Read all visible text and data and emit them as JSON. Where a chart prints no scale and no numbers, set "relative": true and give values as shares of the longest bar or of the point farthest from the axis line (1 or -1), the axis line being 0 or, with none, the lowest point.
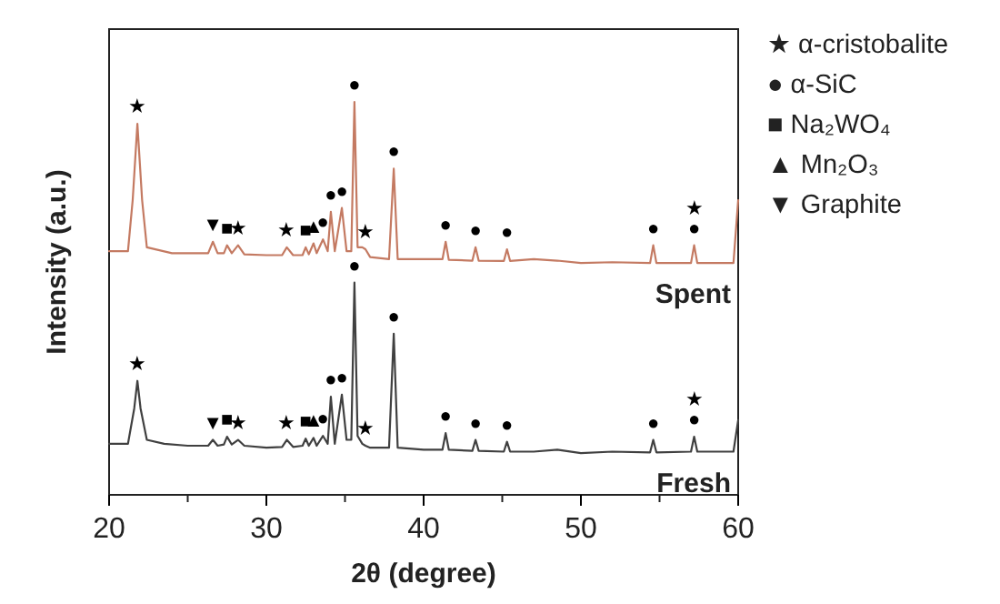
{
  "chart_data": {
    "type": "line",
    "relative": true,
    "xlabel": "2θ (degree)",
    "ylabel": "Intensity (a.u.)",
    "xlim": [
      20,
      60
    ],
    "xticks": [
      20,
      30,
      40,
      50,
      60
    ],
    "tick_labels": "x",
    "series": [
      {
        "name": "Spent",
        "color": "#c47a62",
        "x": [
          20,
          21.2,
          21.5,
          21.8,
          22.1,
          22.4,
          24,
          26.3,
          26.6,
          26.9,
          27.3,
          27.5,
          27.8,
          28.2,
          28.6,
          30,
          31.0,
          31.3,
          31.7,
          32.3,
          32.5,
          32.7,
          33.0,
          33.2,
          33.6,
          33.9,
          34.1,
          34.35,
          34.8,
          35.1,
          35.4,
          35.6,
          35.8,
          36.1,
          36.3,
          36.6,
          37.8,
          38.1,
          38.35,
          40,
          41.2,
          41.4,
          41.6,
          43.1,
          43.3,
          43.5,
          45.1,
          45.3,
          45.5,
          47,
          48.5,
          50,
          52,
          54.4,
          54.6,
          54.8,
          57.0,
          57.2,
          57.4,
          59.7,
          60
        ],
        "values": [
          0.62,
          0.62,
          0.75,
          0.944,
          0.75,
          0.63,
          0.615,
          0.615,
          0.644,
          0.615,
          0.615,
          0.635,
          0.615,
          0.635,
          0.612,
          0.61,
          0.61,
          0.63,
          0.61,
          0.61,
          0.63,
          0.612,
          0.64,
          0.615,
          0.65,
          0.62,
          0.72,
          0.62,
          0.73,
          0.62,
          0.62,
          1.0,
          0.63,
          0.63,
          0.625,
          0.605,
          0.6,
          0.83,
          0.6,
          0.6,
          0.6,
          0.644,
          0.598,
          0.596,
          0.63,
          0.596,
          0.595,
          0.625,
          0.595,
          0.6,
          0.596,
          0.59,
          0.592,
          0.59,
          0.635,
          0.59,
          0.59,
          0.635,
          0.59,
          0.59,
          0.75
        ]
      },
      {
        "name": "Fresh",
        "color": "#404040",
        "x": [
          20,
          21.2,
          21.6,
          21.8,
          22.0,
          22.4,
          23.5,
          25,
          26.3,
          26.6,
          26.9,
          27.3,
          27.5,
          27.8,
          28.2,
          28.6,
          30,
          31.0,
          31.3,
          31.7,
          32.3,
          32.5,
          32.7,
          33.0,
          33.2,
          33.6,
          33.9,
          34.1,
          34.35,
          34.8,
          35.1,
          35.4,
          35.6,
          35.8,
          36.1,
          36.3,
          36.6,
          37.8,
          38.1,
          38.35,
          40,
          41.2,
          41.4,
          41.6,
          43.1,
          43.3,
          43.5,
          45.1,
          45.3,
          45.5,
          47,
          48.5,
          50,
          52,
          54.4,
          54.6,
          54.8,
          57.0,
          57.2,
          57.4,
          59.7,
          60
        ],
        "values": [
          0.13,
          0.13,
          0.22,
          0.29,
          0.22,
          0.14,
          0.13,
          0.125,
          0.125,
          0.14,
          0.125,
          0.128,
          0.148,
          0.128,
          0.14,
          0.125,
          0.12,
          0.122,
          0.14,
          0.122,
          0.125,
          0.143,
          0.125,
          0.145,
          0.125,
          0.15,
          0.13,
          0.25,
          0.13,
          0.255,
          0.14,
          0.14,
          0.54,
          0.15,
          0.13,
          0.125,
          0.12,
          0.12,
          0.41,
          0.12,
          0.115,
          0.115,
          0.157,
          0.115,
          0.112,
          0.14,
          0.112,
          0.11,
          0.135,
          0.11,
          0.11,
          0.115,
          0.106,
          0.11,
          0.108,
          0.14,
          0.108,
          0.11,
          0.148,
          0.11,
          0.11,
          0.19
        ]
      }
    ],
    "annotations": [
      "★ α-cristobalite",
      "● α-SiC",
      "■ Na₂WO₄",
      "▲ Mn₂O₃",
      "▼ Graphite",
      {
        "text": "★",
        "x": 21.8,
        "y": 0.944
      },
      {
        "text": "▼",
        "x": 26.6,
        "y": 0.644
      },
      {
        "text": "■",
        "x": 27.5,
        "y": 0.635
      },
      {
        "text": "★",
        "x": 28.2,
        "y": 0.635
      },
      {
        "text": "★",
        "x": 31.3,
        "y": 0.63
      },
      {
        "text": "■",
        "x": 32.5,
        "y": 0.63
      },
      {
        "text": "▲",
        "x": 33.0,
        "y": 0.64
      },
      {
        "text": "●",
        "x": 33.6,
        "y": 0.65
      },
      {
        "text": "●",
        "x": 34.1,
        "y": 0.72
      },
      {
        "text": "●",
        "x": 34.8,
        "y": 0.73
      },
      {
        "text": "●",
        "x": 35.6,
        "y": 1.0
      },
      {
        "text": "★",
        "x": 36.3,
        "y": 0.625
      },
      {
        "text": "●",
        "x": 38.1,
        "y": 0.83
      },
      {
        "text": "●",
        "x": 41.4,
        "y": 0.644
      },
      {
        "text": "●",
        "x": 43.3,
        "y": 0.63
      },
      {
        "text": "●",
        "x": 45.3,
        "y": 0.625
      },
      {
        "text": "●",
        "x": 54.6,
        "y": 0.635
      },
      {
        "text": "●",
        "x": 57.2,
        "y": 0.635
      },
      {
        "text": "★",
        "x": 57.2,
        "y": 0.635
      },
      {
        "text": "★",
        "x": 21.8,
        "y": 0.29
      },
      {
        "text": "▼",
        "x": 26.6,
        "y": 0.14
      },
      {
        "text": "■",
        "x": 27.5,
        "y": 0.148
      },
      {
        "text": "★",
        "x": 28.2,
        "y": 0.14
      },
      {
        "text": "★",
        "x": 31.3,
        "y": 0.14
      },
      {
        "text": "■",
        "x": 32.5,
        "y": 0.143
      },
      {
        "text": "▲",
        "x": 33.0,
        "y": 0.145
      },
      {
        "text": "●",
        "x": 33.6,
        "y": 0.15
      },
      {
        "text": "●",
        "x": 34.1,
        "y": 0.25
      },
      {
        "text": "●",
        "x": 34.8,
        "y": 0.255
      },
      {
        "text": "●",
        "x": 35.6,
        "y": 0.54
      },
      {
        "text": "★",
        "x": 36.3,
        "y": 0.125
      },
      {
        "text": "●",
        "x": 38.1,
        "y": 0.41
      },
      {
        "text": "●",
        "x": 41.4,
        "y": 0.157
      },
      {
        "text": "●",
        "x": 43.3,
        "y": 0.14
      },
      {
        "text": "●",
        "x": 45.3,
        "y": 0.135
      },
      {
        "text": "●",
        "x": 54.6,
        "y": 0.14
      },
      {
        "text": "●",
        "x": 57.2,
        "y": 0.148
      },
      {
        "text": "★",
        "x": 57.2,
        "y": 0.148
      }
    ]
  }
}
